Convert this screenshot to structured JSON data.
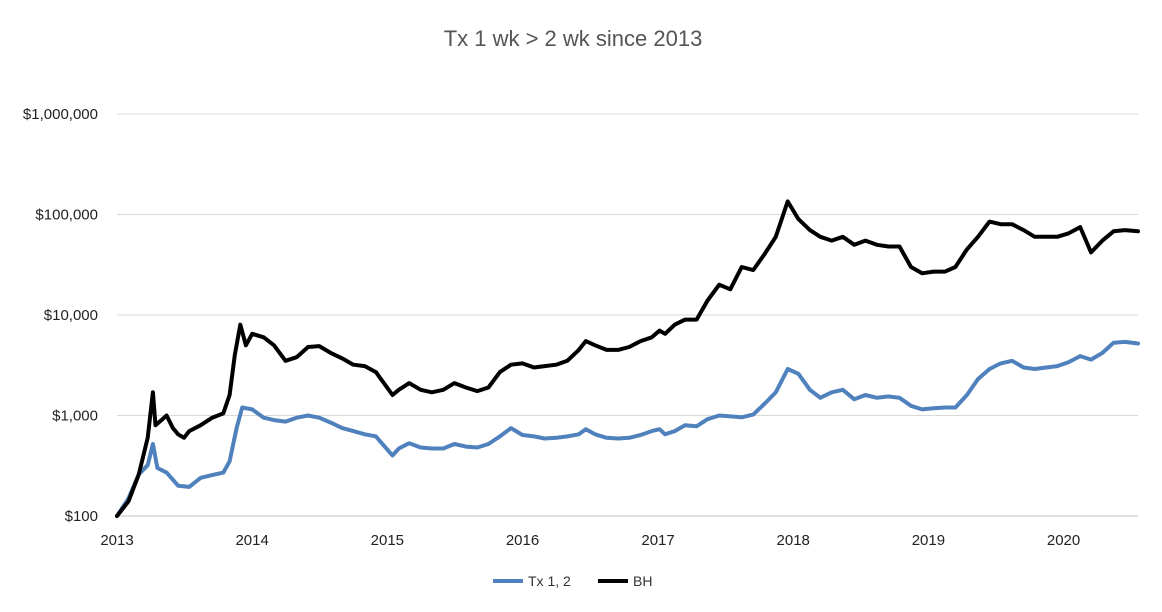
{
  "chart_data": {
    "type": "line",
    "title": "Tx 1 wk > 2 wk since 2013",
    "xlabel": "",
    "ylabel": "",
    "x_scale": "date",
    "y_scale": "log",
    "xlim": [
      "2013-01-01",
      "2020-07-20"
    ],
    "ylim": [
      100,
      1000000
    ],
    "grid": true,
    "legend_position": "bottom",
    "x_tick_labels": [
      "2013",
      "2014",
      "2015",
      "2016",
      "2017",
      "2018",
      "2019",
      "2020"
    ],
    "y_ticks": [
      100,
      1000,
      10000,
      100000,
      1000000
    ],
    "y_tick_labels": [
      "$100",
      "$1,000",
      "$10,000",
      "$100,000",
      "$1,000,000"
    ],
    "series": [
      {
        "name": "Tx 1, 2",
        "color": "#4f81bd",
        "points": [
          [
            "2013-01-01",
            100
          ],
          [
            "2013-02-01",
            150
          ],
          [
            "2013-03-01",
            260
          ],
          [
            "2013-03-25",
            320
          ],
          [
            "2013-04-08",
            520
          ],
          [
            "2013-04-20",
            300
          ],
          [
            "2013-05-15",
            270
          ],
          [
            "2013-06-15",
            200
          ],
          [
            "2013-07-15",
            195
          ],
          [
            "2013-08-15",
            240
          ],
          [
            "2013-09-15",
            255
          ],
          [
            "2013-10-15",
            270
          ],
          [
            "2013-11-01",
            350
          ],
          [
            "2013-11-20",
            750
          ],
          [
            "2013-12-05",
            1200
          ],
          [
            "2014-01-01",
            1150
          ],
          [
            "2014-02-01",
            950
          ],
          [
            "2014-03-01",
            900
          ],
          [
            "2014-04-01",
            870
          ],
          [
            "2014-05-01",
            950
          ],
          [
            "2014-06-01",
            1000
          ],
          [
            "2014-07-01",
            950
          ],
          [
            "2014-08-01",
            850
          ],
          [
            "2014-09-01",
            750
          ],
          [
            "2014-10-01",
            700
          ],
          [
            "2014-11-01",
            650
          ],
          [
            "2014-12-01",
            620
          ],
          [
            "2015-01-15",
            400
          ],
          [
            "2015-02-01",
            470
          ],
          [
            "2015-03-01",
            530
          ],
          [
            "2015-04-01",
            480
          ],
          [
            "2015-05-01",
            470
          ],
          [
            "2015-06-01",
            470
          ],
          [
            "2015-07-01",
            520
          ],
          [
            "2015-08-01",
            490
          ],
          [
            "2015-09-01",
            480
          ],
          [
            "2015-10-01",
            520
          ],
          [
            "2015-11-01",
            620
          ],
          [
            "2015-12-01",
            750
          ],
          [
            "2016-01-01",
            640
          ],
          [
            "2016-02-01",
            620
          ],
          [
            "2016-03-01",
            590
          ],
          [
            "2016-04-01",
            600
          ],
          [
            "2016-05-01",
            620
          ],
          [
            "2016-06-01",
            650
          ],
          [
            "2016-06-20",
            730
          ],
          [
            "2016-07-15",
            650
          ],
          [
            "2016-08-15",
            600
          ],
          [
            "2016-09-15",
            590
          ],
          [
            "2016-10-15",
            600
          ],
          [
            "2016-11-15",
            640
          ],
          [
            "2016-12-15",
            700
          ],
          [
            "2017-01-05",
            730
          ],
          [
            "2017-01-20",
            650
          ],
          [
            "2017-02-15",
            700
          ],
          [
            "2017-03-15",
            800
          ],
          [
            "2017-04-15",
            780
          ],
          [
            "2017-05-15",
            920
          ],
          [
            "2017-06-15",
            1000
          ],
          [
            "2017-07-15",
            980
          ],
          [
            "2017-08-15",
            960
          ],
          [
            "2017-09-15",
            1020
          ],
          [
            "2017-10-15",
            1300
          ],
          [
            "2017-11-15",
            1700
          ],
          [
            "2017-12-17",
            2900
          ],
          [
            "2018-01-15",
            2600
          ],
          [
            "2018-02-15",
            1800
          ],
          [
            "2018-03-15",
            1500
          ],
          [
            "2018-04-15",
            1700
          ],
          [
            "2018-05-15",
            1800
          ],
          [
            "2018-06-15",
            1450
          ],
          [
            "2018-07-15",
            1600
          ],
          [
            "2018-08-15",
            1500
          ],
          [
            "2018-09-15",
            1550
          ],
          [
            "2018-10-15",
            1500
          ],
          [
            "2018-11-15",
            1250
          ],
          [
            "2018-12-15",
            1150
          ],
          [
            "2019-01-15",
            1180
          ],
          [
            "2019-02-15",
            1200
          ],
          [
            "2019-03-15",
            1200
          ],
          [
            "2019-04-15",
            1600
          ],
          [
            "2019-05-15",
            2300
          ],
          [
            "2019-06-15",
            2900
          ],
          [
            "2019-07-15",
            3300
          ],
          [
            "2019-08-15",
            3500
          ],
          [
            "2019-09-15",
            3000
          ],
          [
            "2019-10-15",
            2900
          ],
          [
            "2019-11-15",
            3000
          ],
          [
            "2019-12-15",
            3100
          ],
          [
            "2020-01-15",
            3400
          ],
          [
            "2020-02-15",
            3900
          ],
          [
            "2020-03-15",
            3600
          ],
          [
            "2020-04-15",
            4200
          ],
          [
            "2020-05-15",
            5300
          ],
          [
            "2020-06-15",
            5400
          ],
          [
            "2020-07-20",
            5200
          ]
        ]
      },
      {
        "name": "BH",
        "color": "#000000",
        "points": [
          [
            "2013-01-01",
            100
          ],
          [
            "2013-02-01",
            140
          ],
          [
            "2013-03-01",
            260
          ],
          [
            "2013-03-25",
            600
          ],
          [
            "2013-04-08",
            1700
          ],
          [
            "2013-04-15",
            800
          ],
          [
            "2013-05-01",
            900
          ],
          [
            "2013-05-15",
            1000
          ],
          [
            "2013-06-01",
            750
          ],
          [
            "2013-06-15",
            650
          ],
          [
            "2013-07-01",
            600
          ],
          [
            "2013-07-15",
            700
          ],
          [
            "2013-08-15",
            800
          ],
          [
            "2013-09-15",
            950
          ],
          [
            "2013-10-15",
            1050
          ],
          [
            "2013-11-01",
            1600
          ],
          [
            "2013-11-15",
            4000
          ],
          [
            "2013-11-30",
            8000
          ],
          [
            "2013-12-15",
            5000
          ],
          [
            "2014-01-01",
            6500
          ],
          [
            "2014-02-01",
            6000
          ],
          [
            "2014-03-01",
            5000
          ],
          [
            "2014-04-01",
            3500
          ],
          [
            "2014-05-01",
            3800
          ],
          [
            "2014-06-01",
            4800
          ],
          [
            "2014-07-01",
            4900
          ],
          [
            "2014-08-01",
            4200
          ],
          [
            "2014-09-01",
            3700
          ],
          [
            "2014-10-01",
            3200
          ],
          [
            "2014-11-01",
            3100
          ],
          [
            "2014-12-01",
            2700
          ],
          [
            "2015-01-15",
            1600
          ],
          [
            "2015-02-01",
            1800
          ],
          [
            "2015-03-01",
            2100
          ],
          [
            "2015-04-01",
            1800
          ],
          [
            "2015-05-01",
            1700
          ],
          [
            "2015-06-01",
            1800
          ],
          [
            "2015-07-01",
            2100
          ],
          [
            "2015-08-01",
            1900
          ],
          [
            "2015-09-01",
            1750
          ],
          [
            "2015-10-01",
            1900
          ],
          [
            "2015-11-01",
            2700
          ],
          [
            "2015-12-01",
            3200
          ],
          [
            "2016-01-01",
            3300
          ],
          [
            "2016-02-01",
            3000
          ],
          [
            "2016-03-01",
            3100
          ],
          [
            "2016-04-01",
            3200
          ],
          [
            "2016-05-01",
            3500
          ],
          [
            "2016-06-01",
            4500
          ],
          [
            "2016-06-20",
            5500
          ],
          [
            "2016-07-15",
            5000
          ],
          [
            "2016-08-15",
            4500
          ],
          [
            "2016-09-15",
            4500
          ],
          [
            "2016-10-15",
            4800
          ],
          [
            "2016-11-15",
            5500
          ],
          [
            "2016-12-15",
            6000
          ],
          [
            "2017-01-05",
            7000
          ],
          [
            "2017-01-20",
            6500
          ],
          [
            "2017-02-15",
            8000
          ],
          [
            "2017-03-15",
            9000
          ],
          [
            "2017-04-15",
            9000
          ],
          [
            "2017-05-15",
            14000
          ],
          [
            "2017-06-15",
            20000
          ],
          [
            "2017-07-15",
            18000
          ],
          [
            "2017-08-15",
            30000
          ],
          [
            "2017-09-15",
            28000
          ],
          [
            "2017-10-15",
            40000
          ],
          [
            "2017-11-15",
            60000
          ],
          [
            "2017-12-17",
            135000
          ],
          [
            "2018-01-15",
            90000
          ],
          [
            "2018-02-15",
            70000
          ],
          [
            "2018-03-15",
            60000
          ],
          [
            "2018-04-15",
            55000
          ],
          [
            "2018-05-15",
            60000
          ],
          [
            "2018-06-15",
            50000
          ],
          [
            "2018-07-15",
            55000
          ],
          [
            "2018-08-15",
            50000
          ],
          [
            "2018-09-15",
            48000
          ],
          [
            "2018-10-15",
            48000
          ],
          [
            "2018-11-15",
            30000
          ],
          [
            "2018-12-15",
            26000
          ],
          [
            "2019-01-15",
            27000
          ],
          [
            "2019-02-15",
            27000
          ],
          [
            "2019-03-15",
            30000
          ],
          [
            "2019-04-15",
            45000
          ],
          [
            "2019-05-15",
            60000
          ],
          [
            "2019-06-15",
            85000
          ],
          [
            "2019-07-15",
            80000
          ],
          [
            "2019-08-15",
            80000
          ],
          [
            "2019-09-15",
            70000
          ],
          [
            "2019-10-15",
            60000
          ],
          [
            "2019-11-15",
            60000
          ],
          [
            "2019-12-15",
            60000
          ],
          [
            "2020-01-15",
            65000
          ],
          [
            "2020-02-15",
            75000
          ],
          [
            "2020-03-15",
            42000
          ],
          [
            "2020-04-15",
            55000
          ],
          [
            "2020-05-15",
            68000
          ],
          [
            "2020-06-15",
            70000
          ],
          [
            "2020-07-20",
            68000
          ]
        ]
      }
    ]
  }
}
